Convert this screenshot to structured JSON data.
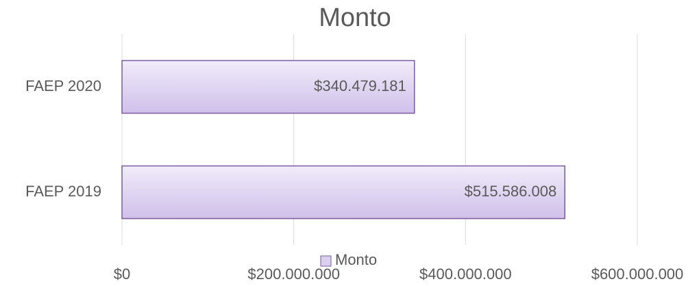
{
  "chart_data": {
    "type": "barh",
    "title": "Monto",
    "categories": [
      "FAEP 2020",
      "FAEP 2019"
    ],
    "series": [
      {
        "name": "Monto",
        "color": "#dcd0ef",
        "edge_color": "#7a5a9e",
        "values": [
          340479181,
          515586008
        ],
        "value_labels": [
          "$340.479.181",
          "$515.586.008"
        ]
      }
    ],
    "xlim": [
      0,
      600000000
    ],
    "xticks": [
      {
        "value": 0,
        "label": "$0"
      },
      {
        "value": 200000000,
        "label": "$200.000.000"
      },
      {
        "value": 400000000,
        "label": "$400.000.000"
      },
      {
        "value": 600000000,
        "label": "$600.000.000"
      }
    ],
    "grid": true,
    "legend": "bottom"
  }
}
